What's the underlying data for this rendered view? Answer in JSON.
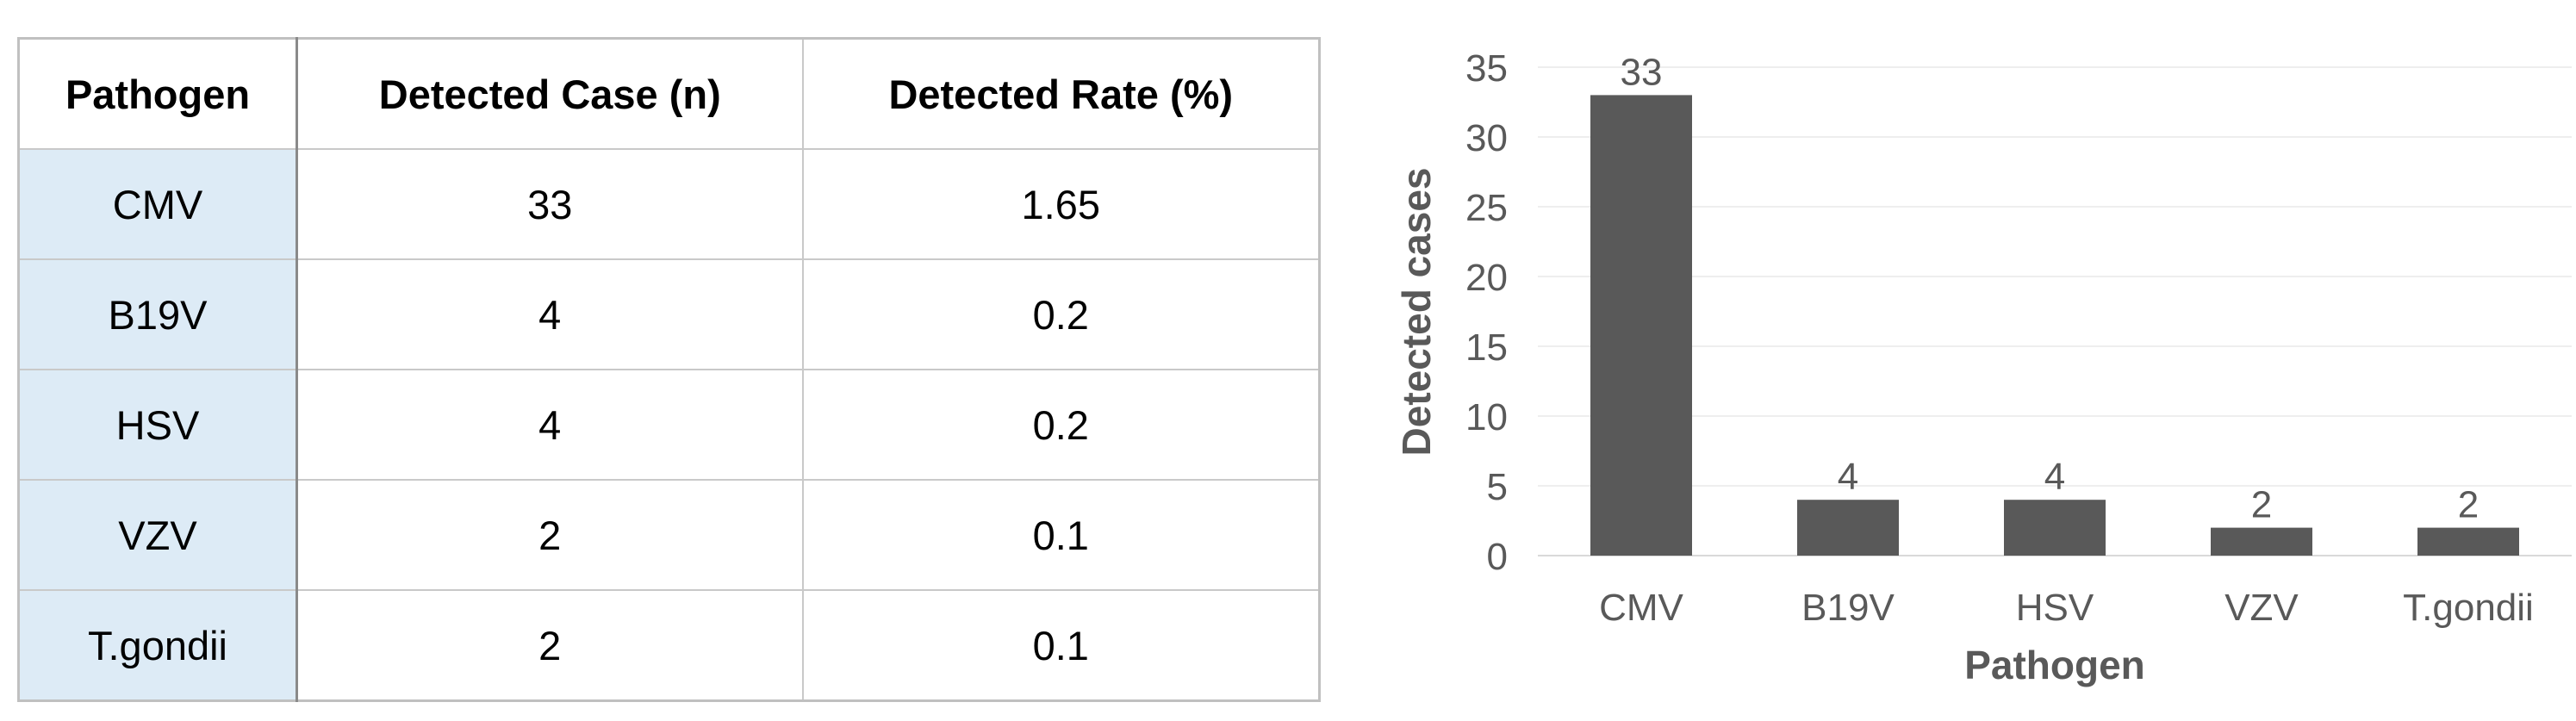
{
  "table": {
    "headers": [
      "Pathogen",
      "Detected Case (n)",
      "Detected Rate (%)"
    ],
    "rows": [
      [
        "CMV",
        "33",
        "1.65"
      ],
      [
        "B19V",
        "4",
        "0.2"
      ],
      [
        "HSV",
        "4",
        "0.2"
      ],
      [
        "VZV",
        "2",
        "0.1"
      ],
      [
        "T.gondii",
        "2",
        "0.1"
      ]
    ]
  },
  "colors": {
    "bar": "#595959",
    "first_column_fill": "#ddebf6",
    "grid": "#eeeeee",
    "axis_text": "#595959"
  },
  "chart_data": {
    "type": "bar",
    "categories": [
      "CMV",
      "B19V",
      "HSV",
      "VZV",
      "T.gondii"
    ],
    "values": [
      33,
      4,
      4,
      2,
      2
    ],
    "data_labels": [
      "33",
      "4",
      "4",
      "2",
      "2"
    ],
    "xlabel": "Pathogen",
    "ylabel": "Detected cases",
    "ylim": [
      0,
      35
    ],
    "yticks": [
      0,
      5,
      10,
      15,
      20,
      25,
      30,
      35
    ],
    "grid": true,
    "legend": "none"
  }
}
